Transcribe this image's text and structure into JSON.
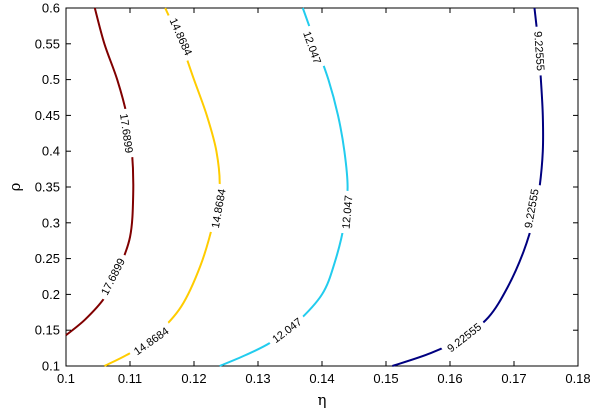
{
  "chart_data": {
    "type": "contour",
    "title": "",
    "xlabel": "η",
    "ylabel": "ρ",
    "xlim": [
      0.1,
      0.18
    ],
    "ylim": [
      0.1,
      0.6
    ],
    "x_ticks": [
      0.1,
      0.11,
      0.12,
      0.13,
      0.14,
      0.15,
      0.16,
      0.17,
      0.18
    ],
    "y_ticks": [
      0.1,
      0.15,
      0.2,
      0.25,
      0.3,
      0.35,
      0.4,
      0.45,
      0.5,
      0.55,
      0.6
    ],
    "x_tick_labels": [
      "0.1",
      "0.11",
      "0.12",
      "0.13",
      "0.14",
      "0.15",
      "0.16",
      "0.17",
      "0.18"
    ],
    "y_tick_labels": [
      "0.1",
      "0.15",
      "0.2",
      "0.25",
      "0.3",
      "0.35",
      "0.4",
      "0.45",
      "0.5",
      "0.55",
      "0.6"
    ],
    "grid": false,
    "series": [
      {
        "level": "17.6899",
        "color": "#800000",
        "points": [
          [
            0.1,
            0.143
          ],
          [
            0.103,
            0.165
          ],
          [
            0.106,
            0.195
          ],
          [
            0.108,
            0.23
          ],
          [
            0.11,
            0.28
          ],
          [
            0.1105,
            0.34
          ],
          [
            0.1103,
            0.4
          ],
          [
            0.1095,
            0.45
          ],
          [
            0.108,
            0.5
          ],
          [
            0.106,
            0.55
          ],
          [
            0.1045,
            0.6
          ]
        ],
        "label_points": [
          [
            0.1073,
            0.225
          ],
          [
            0.1095,
            0.425
          ]
        ]
      },
      {
        "level": "14.8684",
        "color": "#ffcc00",
        "points": [
          [
            0.106,
            0.1
          ],
          [
            0.11,
            0.118
          ],
          [
            0.114,
            0.143
          ],
          [
            0.118,
            0.183
          ],
          [
            0.121,
            0.24
          ],
          [
            0.123,
            0.3
          ],
          [
            0.124,
            0.35
          ],
          [
            0.1235,
            0.4
          ],
          [
            0.122,
            0.45
          ],
          [
            0.12,
            0.5
          ],
          [
            0.118,
            0.55
          ],
          [
            0.1155,
            0.6
          ]
        ],
        "label_points": [
          [
            0.1133,
            0.135
          ],
          [
            0.1238,
            0.32
          ],
          [
            0.118,
            0.56
          ]
        ]
      },
      {
        "level": "12.047",
        "color": "#22ccee",
        "points": [
          [
            0.124,
            0.1
          ],
          [
            0.128,
            0.115
          ],
          [
            0.132,
            0.133
          ],
          [
            0.136,
            0.16
          ],
          [
            0.14,
            0.2
          ],
          [
            0.142,
            0.245
          ],
          [
            0.1435,
            0.3
          ],
          [
            0.144,
            0.35
          ],
          [
            0.1435,
            0.4
          ],
          [
            0.1425,
            0.45
          ],
          [
            0.141,
            0.5
          ],
          [
            0.139,
            0.55
          ],
          [
            0.137,
            0.6
          ]
        ],
        "label_points": [
          [
            0.1345,
            0.15
          ],
          [
            0.1439,
            0.315
          ],
          [
            0.1385,
            0.545
          ]
        ]
      },
      {
        "level": "9.22555",
        "color": "#000080",
        "points": [
          [
            0.151,
            0.1
          ],
          [
            0.157,
            0.118
          ],
          [
            0.162,
            0.14
          ],
          [
            0.166,
            0.168
          ],
          [
            0.169,
            0.21
          ],
          [
            0.1715,
            0.26
          ],
          [
            0.1732,
            0.31
          ],
          [
            0.174,
            0.35
          ],
          [
            0.1745,
            0.4
          ],
          [
            0.1745,
            0.45
          ],
          [
            0.1742,
            0.5
          ],
          [
            0.1738,
            0.55
          ],
          [
            0.1732,
            0.6
          ]
        ],
        "label_points": [
          [
            0.1622,
            0.14
          ],
          [
            0.1727,
            0.32
          ],
          [
            0.174,
            0.54
          ]
        ]
      }
    ]
  }
}
